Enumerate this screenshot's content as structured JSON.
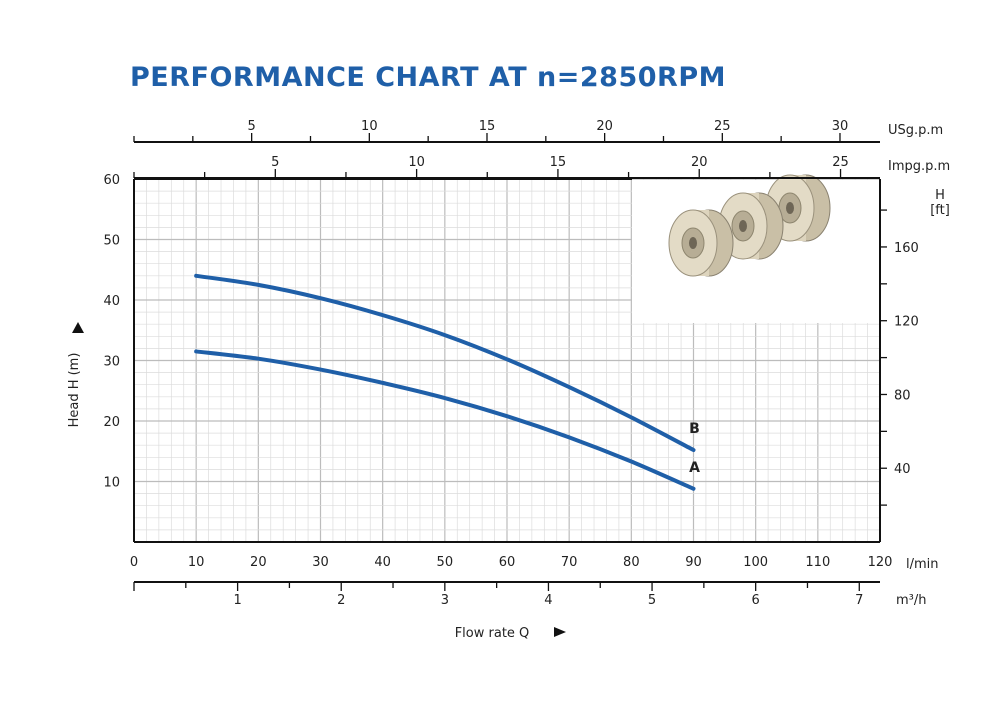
{
  "chart_data": {
    "type": "line",
    "title": "PERFORMANCE CHART AT n=2850RPM",
    "xlabel": "Flow rate Q",
    "ylabel": "Head H (m)",
    "x_unit": "l/min",
    "x_range": [
      0,
      120
    ],
    "x_ticks": [
      0,
      10,
      20,
      30,
      40,
      50,
      60,
      70,
      80,
      90,
      100,
      110,
      120
    ],
    "y_range": [
      0,
      60
    ],
    "y_ticks": [
      10,
      20,
      30,
      40,
      50,
      60
    ],
    "secondary_axes": [
      {
        "unit": "USg.p.m",
        "position": "top",
        "ticks": [
          5,
          10,
          15,
          20,
          25,
          30
        ],
        "factor": 0.264172
      },
      {
        "unit": "Impg.p.m",
        "position": "top",
        "ticks": [
          5,
          10,
          15,
          20,
          25
        ],
        "factor": 0.219969
      },
      {
        "unit": "m³/h",
        "position": "bottom",
        "ticks": [
          1,
          2,
          3,
          4,
          5,
          6,
          7
        ],
        "factor": 0.06
      },
      {
        "unit": "H\n[ft]",
        "unit_lines": [
          "H",
          "[ft]"
        ],
        "position": "right",
        "ticks": [
          40,
          80,
          120,
          160
        ],
        "factor": 3.28084
      }
    ],
    "grid": true,
    "series": [
      {
        "name": "B",
        "color": "#1f5fa8",
        "x": [
          10,
          20,
          30,
          40,
          50,
          60,
          70,
          80,
          90
        ],
        "y": [
          44,
          42.5,
          40.3,
          37.5,
          34.2,
          30.2,
          25.6,
          20.6,
          15.2
        ]
      },
      {
        "name": "A",
        "color": "#1f5fa8",
        "x": [
          10,
          20,
          30,
          40,
          50,
          60,
          70,
          80,
          90
        ],
        "y": [
          31.5,
          30.3,
          28.5,
          26.3,
          23.8,
          20.8,
          17.3,
          13.3,
          8.8
        ]
      }
    ]
  },
  "colors": {
    "accent": "#1f5fa8",
    "grid_major": "#bcbcbc",
    "grid_minor": "#dcdcdc",
    "axis": "#111111"
  },
  "icons": {
    "impeller": "stacked-impeller-stages-icon"
  }
}
